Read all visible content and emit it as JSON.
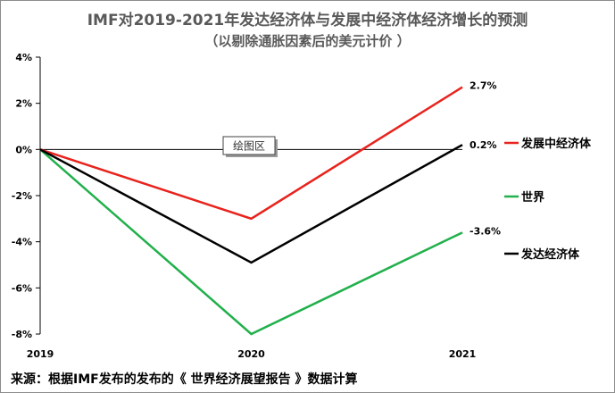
{
  "chart_data": {
    "type": "line",
    "title": "IMF对2019-2021年发达经济体与发展中经济体经济增长的预测",
    "subtitle": "（以剔除通胀因素后的美元计价 ）",
    "x": [
      "2019",
      "2020",
      "2021"
    ],
    "ylim": [
      -8,
      4
    ],
    "y_ticks": [
      "4%",
      "2%",
      "0%",
      "-2%",
      "-4%",
      "-6%",
      "-8%"
    ],
    "y_tick_values": [
      4,
      2,
      0,
      -2,
      -4,
      -6,
      -8
    ],
    "grid": false,
    "legend_placement": "right",
    "series": [
      {
        "name": "发展中经济体",
        "values": [
          0,
          -3.0,
          2.7
        ],
        "color": "#e8231d",
        "end_label": "2.7%"
      },
      {
        "name": "世界",
        "values": [
          0,
          -8.0,
          -3.6
        ],
        "color": "#21b04b",
        "end_label": "-3.6%"
      },
      {
        "name": "发达经济体",
        "values": [
          0,
          -4.9,
          0.2
        ],
        "color": "#000000",
        "end_label": "0.2%"
      }
    ],
    "tooltip": "绘图区",
    "source": "来源：根据IMF发布的发布的《 世界经济展望报告 》数据计算"
  }
}
